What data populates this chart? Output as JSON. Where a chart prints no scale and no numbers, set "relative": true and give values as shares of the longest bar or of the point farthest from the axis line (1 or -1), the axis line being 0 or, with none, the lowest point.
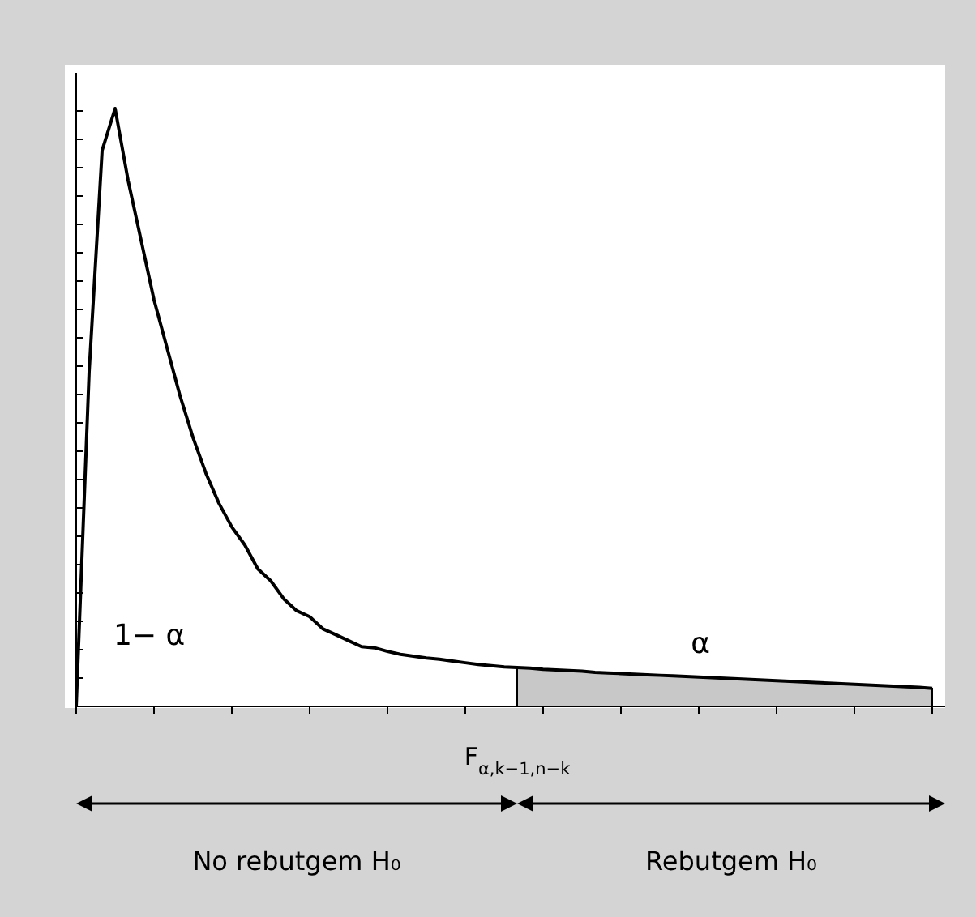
{
  "chart_data": {
    "type": "line",
    "relative": true,
    "categories": [
      null,
      null,
      null,
      null,
      null,
      null,
      null,
      null,
      null,
      null,
      null,
      null,
      null,
      null,
      null,
      null,
      null,
      null,
      null,
      null,
      null,
      null,
      null,
      null,
      null,
      null,
      null,
      null,
      null,
      null,
      null,
      null,
      null,
      null,
      null,
      null,
      null,
      null,
      null,
      null,
      null,
      null,
      null,
      null,
      null,
      null,
      null,
      null,
      null,
      null,
      null,
      null,
      null,
      null,
      null,
      null,
      null,
      null,
      null,
      null,
      null,
      null,
      null,
      null,
      null,
      null,
      null
    ],
    "series": [
      {
        "type": "line",
        "color": "#000000",
        "values": [
          0,
          0.56,
          0.93,
          1,
          0.88,
          0.78,
          0.68,
          0.6,
          0.52,
          0.45,
          0.39,
          0.34,
          0.3,
          0.27,
          0.23,
          0.21,
          0.18,
          0.16,
          0.15,
          0.13,
          0.12,
          0.11,
          0.1,
          0.098,
          0.092,
          0.087,
          0.084,
          0.081,
          0.079,
          0.076,
          0.073,
          0.07,
          0.068,
          0.066,
          0.065,
          0.064,
          0.062,
          0.061,
          0.06,
          0.059,
          0.057,
          0.056,
          0.055,
          0.054,
          0.053,
          0.052,
          0.051,
          0.05,
          0.049,
          0.048,
          0.047,
          0.046,
          0.045,
          0.044,
          0.043,
          0.042,
          0.041,
          0.04,
          0.039,
          0.038,
          0.037,
          0.036,
          0.035,
          0.034,
          0.033,
          0.032,
          0.03
        ]
      },
      {
        "type": "area",
        "color": "#c8c8c8",
        "values": [
          null,
          null,
          null,
          null,
          null,
          null,
          null,
          null,
          null,
          null,
          null,
          null,
          null,
          null,
          null,
          null,
          null,
          null,
          null,
          null,
          null,
          null,
          null,
          null,
          null,
          null,
          null,
          null,
          null,
          null,
          null,
          null,
          null,
          null,
          0.065,
          0.064,
          0.062,
          0.061,
          0.06,
          0.059,
          0.057,
          0.056,
          0.055,
          0.054,
          0.053,
          0.052,
          0.051,
          0.05,
          0.049,
          0.048,
          0.047,
          0.046,
          0.045,
          0.044,
          0.043,
          0.042,
          0.041,
          0.04,
          0.039,
          0.038,
          0.037,
          0.036,
          0.035,
          0.034,
          0.033,
          0.032,
          0.03
        ]
      }
    ],
    "annotations": [
      "1− α",
      "α",
      "F$_{α,k−1,n−k}$",
      "No rebutgem H₀",
      "Rebutgem H₀"
    ]
  }
}
